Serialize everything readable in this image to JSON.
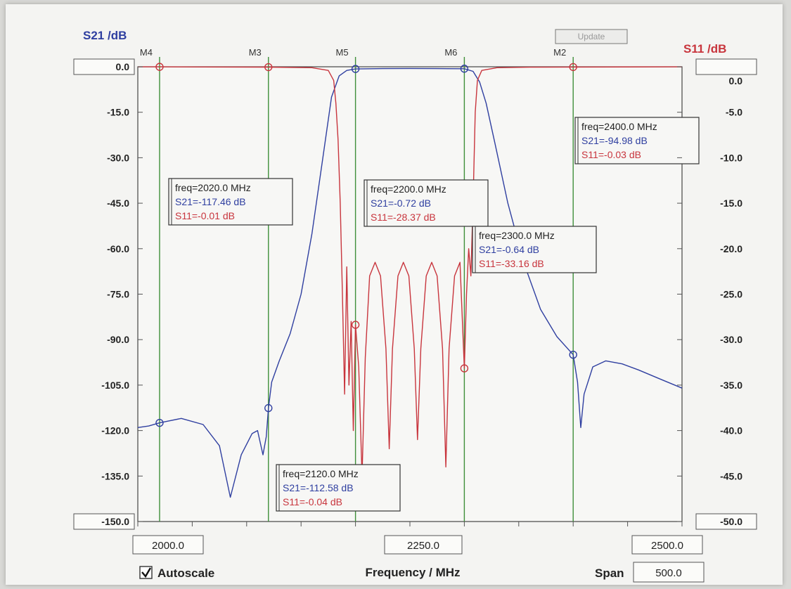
{
  "chart_data": {
    "type": "line",
    "left_axis": {
      "title": "S21 /dB",
      "range": [
        -150,
        0
      ],
      "ticks": [
        "0.0",
        "-15.0",
        "-30.0",
        "-45.0",
        "-60.0",
        "-75.0",
        "-90.0",
        "-105.0",
        "-120.0",
        "-135.0",
        "-150.0"
      ],
      "color": "#2f3fa0"
    },
    "right_axis": {
      "title": "S11 /dB",
      "range": [
        -50,
        0
      ],
      "ticks": [
        "0.0",
        "-5.0",
        "-10.0",
        "-15.0",
        "-20.0",
        "-25.0",
        "-30.0",
        "-35.0",
        "-40.0",
        "-45.0",
        "-50.0"
      ],
      "color": "#c8353d"
    },
    "x_axis": {
      "title": "Frequency / MHz",
      "range": [
        2000,
        2500
      ],
      "start_label": "2000.0",
      "center_label": "2250.0",
      "stop_label": "2500.0"
    },
    "series": [
      {
        "name": "S21",
        "axis": "left",
        "color": "#2f3fa0",
        "points": [
          [
            2000,
            -119
          ],
          [
            2010,
            -118.5
          ],
          [
            2020,
            -117.46
          ],
          [
            2040,
            -116
          ],
          [
            2060,
            -118
          ],
          [
            2075,
            -125
          ],
          [
            2085,
            -142
          ],
          [
            2095,
            -128
          ],
          [
            2105,
            -121
          ],
          [
            2110,
            -120
          ],
          [
            2115,
            -128
          ],
          [
            2118,
            -122
          ],
          [
            2120,
            -112.58
          ],
          [
            2123,
            -104
          ],
          [
            2130,
            -97
          ],
          [
            2140,
            -88
          ],
          [
            2150,
            -75
          ],
          [
            2160,
            -55
          ],
          [
            2170,
            -30
          ],
          [
            2178,
            -10
          ],
          [
            2185,
            -3
          ],
          [
            2192,
            -1.2
          ],
          [
            2200,
            -0.72
          ],
          [
            2225,
            -0.6
          ],
          [
            2250,
            -0.55
          ],
          [
            2275,
            -0.6
          ],
          [
            2300,
            -0.64
          ],
          [
            2308,
            -1.5
          ],
          [
            2314,
            -5
          ],
          [
            2320,
            -12
          ],
          [
            2328,
            -25
          ],
          [
            2340,
            -45
          ],
          [
            2355,
            -65
          ],
          [
            2370,
            -80
          ],
          [
            2385,
            -89
          ],
          [
            2400,
            -94.98
          ],
          [
            2404,
            -104
          ],
          [
            2407,
            -119
          ],
          [
            2410,
            -108
          ],
          [
            2418,
            -99
          ],
          [
            2430,
            -97
          ],
          [
            2445,
            -98
          ],
          [
            2460,
            -100
          ],
          [
            2480,
            -103
          ],
          [
            2500,
            -106
          ]
        ]
      },
      {
        "name": "S11",
        "axis": "right",
        "color": "#c8353d",
        "points": [
          [
            2000,
            -0.01
          ],
          [
            2020,
            -0.01
          ],
          [
            2060,
            -0.02
          ],
          [
            2120,
            -0.04
          ],
          [
            2160,
            -0.1
          ],
          [
            2175,
            -0.4
          ],
          [
            2180,
            -1.5
          ],
          [
            2182,
            -4
          ],
          [
            2184,
            -8
          ],
          [
            2186,
            -15
          ],
          [
            2188,
            -25
          ],
          [
            2190,
            -36
          ],
          [
            2192,
            -22
          ],
          [
            2194,
            -35
          ],
          [
            2196,
            -28
          ],
          [
            2198,
            -40
          ],
          [
            2200,
            -28.37
          ],
          [
            2203,
            -33
          ],
          [
            2206,
            -45
          ],
          [
            2209,
            -32
          ],
          [
            2213,
            -23
          ],
          [
            2218,
            -21.5
          ],
          [
            2223,
            -23
          ],
          [
            2228,
            -31
          ],
          [
            2231,
            -42
          ],
          [
            2234,
            -31
          ],
          [
            2239,
            -23
          ],
          [
            2244,
            -21.5
          ],
          [
            2249,
            -23
          ],
          [
            2254,
            -31
          ],
          [
            2257,
            -41
          ],
          [
            2260,
            -31
          ],
          [
            2265,
            -23
          ],
          [
            2270,
            -21.5
          ],
          [
            2275,
            -23
          ],
          [
            2280,
            -31
          ],
          [
            2283,
            -44
          ],
          [
            2286,
            -31
          ],
          [
            2291,
            -23
          ],
          [
            2296,
            -21.5
          ],
          [
            2300,
            -33.16
          ],
          [
            2302,
            -25
          ],
          [
            2304,
            -20
          ],
          [
            2306,
            -23
          ],
          [
            2308,
            -15
          ],
          [
            2310,
            -5
          ],
          [
            2312,
            -1.5
          ],
          [
            2316,
            -0.4
          ],
          [
            2330,
            -0.1
          ],
          [
            2360,
            -0.05
          ],
          [
            2400,
            -0.03
          ],
          [
            2500,
            -0.01
          ]
        ]
      }
    ],
    "markers": [
      {
        "name": "M4",
        "freq": 2020,
        "box": [
          "freq=2020.0 MHz",
          "S21=-117.46 dB",
          "S11=-0.01 dB"
        ],
        "s21": -117.46,
        "s11": -0.01
      },
      {
        "name": "M3",
        "freq": 2120,
        "box": [
          "freq=2120.0 MHz",
          "S21=-112.58 dB",
          "S11=-0.04 dB"
        ],
        "s21": -112.58,
        "s11": -0.04
      },
      {
        "name": "M5",
        "freq": 2200,
        "box": [
          "freq=2200.0 MHz",
          "S21=-0.72 dB",
          "S11=-28.37 dB"
        ],
        "s21": -0.72,
        "s11": -28.37
      },
      {
        "name": "M6",
        "freq": 2300,
        "box": [
          "freq=2300.0 MHz",
          "S21=-0.64 dB",
          "S11=-33.16 dB"
        ],
        "s21": -0.64,
        "s11": -33.16
      },
      {
        "name": "M2",
        "freq": 2400,
        "box": [
          "freq=2400.0 MHz",
          "S21=-94.98 dB",
          "S11=-0.03 dB"
        ],
        "s21": -94.98,
        "s11": -0.03
      }
    ],
    "grid": false,
    "legend": "none"
  },
  "controls": {
    "autoscale_label": "Autoscale",
    "autoscale_checked": true,
    "span_label": "Span",
    "span_value": "500.0",
    "update_label": "Update"
  },
  "colors": {
    "marker_line": "#3f8f3a",
    "s21": "#2f3fa0",
    "s11": "#c8353d"
  }
}
